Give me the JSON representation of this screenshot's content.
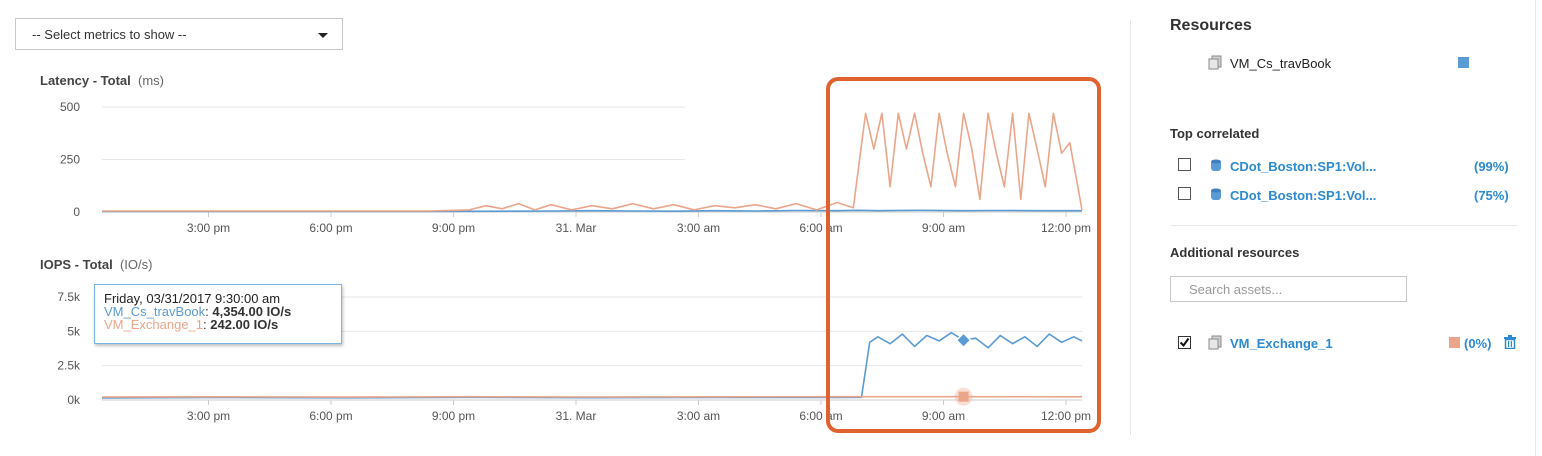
{
  "metrics_select": {
    "label": "-- Select metrics to show --"
  },
  "colors": {
    "series_blue": "#5b9bd5",
    "series_salmon": "#eaa58a",
    "highlight": "#e0622f",
    "link": "#2b8ad0",
    "grid": "#e6e6e6",
    "axis_text": "#555555"
  },
  "latency_chart": {
    "title": "Latency - Total",
    "unit": "(ms)"
  },
  "iops_chart": {
    "title": "IOPS - Total",
    "unit": "(IO/s)"
  },
  "tooltip": {
    "date": "Friday, 03/31/2017 9:30:00 am",
    "series1_name": "VM_Cs_travBook",
    "series1_value": "4,354.00 IO/s",
    "series2_name": "VM_Exchange_1",
    "series2_value": "242.00 IO/s"
  },
  "chart_data": [
    {
      "type": "line",
      "title": "Latency - Total",
      "ylabel": "(ms)",
      "yticks": [
        "500",
        "250",
        "0"
      ],
      "ylim": [
        0,
        500
      ],
      "xticks": [
        "3:00 pm",
        "6:00 pm",
        "9:00 pm",
        "31. Mar",
        "3:00 am",
        "6:00 am",
        "9:00 am",
        "12:00 pm"
      ],
      "xlim_hours": [
        0,
        24
      ],
      "x_tick_hours": [
        3,
        6,
        9,
        12,
        15,
        18,
        21,
        24
      ],
      "grid": true,
      "series": [
        {
          "name": "VM_Cs_travBook",
          "color": "#5b9bd5",
          "x_hours": [
            0,
            8,
            10,
            11,
            12,
            13,
            14,
            15,
            16,
            17,
            18,
            18.5,
            19,
            20,
            21,
            22,
            23,
            24
          ],
          "values": [
            3,
            3,
            4,
            5,
            6,
            5,
            4,
            6,
            5,
            7,
            6,
            8,
            6,
            8,
            6,
            7,
            6,
            6
          ]
        },
        {
          "name": "VM_Exchange_1",
          "color": "#eaa58a",
          "x_hours": [
            0,
            8,
            9,
            9.4,
            9.8,
            10.2,
            10.6,
            11,
            11.5,
            12,
            12.5,
            13,
            13.5,
            14,
            14.5,
            15,
            15.5,
            16,
            16.5,
            17,
            17.5,
            18,
            18.4,
            18.7,
            18.9,
            19.1,
            19.3,
            19.5,
            19.7,
            19.9,
            20.1,
            20.3,
            20.5,
            20.7,
            20.9,
            21.1,
            21.3,
            21.5,
            21.7,
            21.9,
            22.1,
            22.3,
            22.5,
            22.7,
            22.9,
            23.1,
            23.3,
            23.5,
            23.7,
            24
          ],
          "values": [
            5,
            5,
            10,
            30,
            15,
            40,
            10,
            35,
            10,
            30,
            15,
            40,
            15,
            35,
            10,
            30,
            20,
            35,
            15,
            40,
            10,
            45,
            20,
            470,
            300,
            470,
            120,
            470,
            300,
            470,
            280,
            120,
            470,
            280,
            120,
            470,
            300,
            60,
            470,
            280,
            120,
            470,
            60,
            470,
            300,
            120,
            470,
            280,
            330,
            10
          ]
        }
      ]
    },
    {
      "type": "line",
      "title": "IOPS - Total",
      "ylabel": "(IO/s)",
      "yticks": [
        "7.5k",
        "5k",
        "2.5k",
        "0k"
      ],
      "ylim": [
        0,
        7500
      ],
      "xticks": [
        "3:00 pm",
        "6:00 pm",
        "9:00 pm",
        "31. Mar",
        "3:00 am",
        "6:00 am",
        "9:00 am",
        "12:00 pm"
      ],
      "xlim_hours": [
        0,
        24
      ],
      "x_tick_hours": [
        3,
        6,
        9,
        12,
        15,
        18,
        21,
        24
      ],
      "grid": true,
      "series": [
        {
          "name": "VM_Cs_travBook",
          "color": "#5b9bd5",
          "x_hours": [
            0,
            3,
            6,
            9,
            12,
            15,
            18,
            18.6,
            18.8,
            19,
            19.3,
            19.6,
            19.9,
            20.2,
            20.5,
            20.8,
            21.1,
            21.4,
            21.7,
            22,
            22.3,
            22.6,
            22.9,
            23.2,
            23.5,
            23.8,
            24
          ],
          "values": [
            150,
            180,
            160,
            200,
            170,
            190,
            180,
            200,
            4200,
            4600,
            4100,
            4800,
            3900,
            4700,
            4300,
            4900,
            4354,
            4500,
            3800,
            4700,
            4100,
            4600,
            3900,
            4800,
            4200,
            4600,
            4300
          ]
        },
        {
          "name": "VM_Exchange_1",
          "color": "#eaa58a",
          "x_hours": [
            0,
            3,
            6,
            9,
            12,
            15,
            18,
            21.1,
            24
          ],
          "values": [
            220,
            230,
            210,
            240,
            220,
            230,
            240,
            242,
            230
          ]
        }
      ]
    }
  ],
  "resources_panel": {
    "title": "Resources",
    "resource": {
      "name": "VM_Cs_travBook",
      "color": "#5b9bd5"
    },
    "top_correlated_title": "Top correlated",
    "top_correlated": [
      {
        "name": "CDot_Boston:SP1:Vol...",
        "pct": "(99%)",
        "checked": false
      },
      {
        "name": "CDot_Boston:SP1:Vol...",
        "pct": "(75%)",
        "checked": false
      }
    ],
    "additional_title": "Additional resources",
    "search_placeholder": "Search assets...",
    "additional": [
      {
        "name": "VM_Exchange_1",
        "pct": "(0%)",
        "checked": true,
        "color": "#eaa58a"
      }
    ]
  }
}
